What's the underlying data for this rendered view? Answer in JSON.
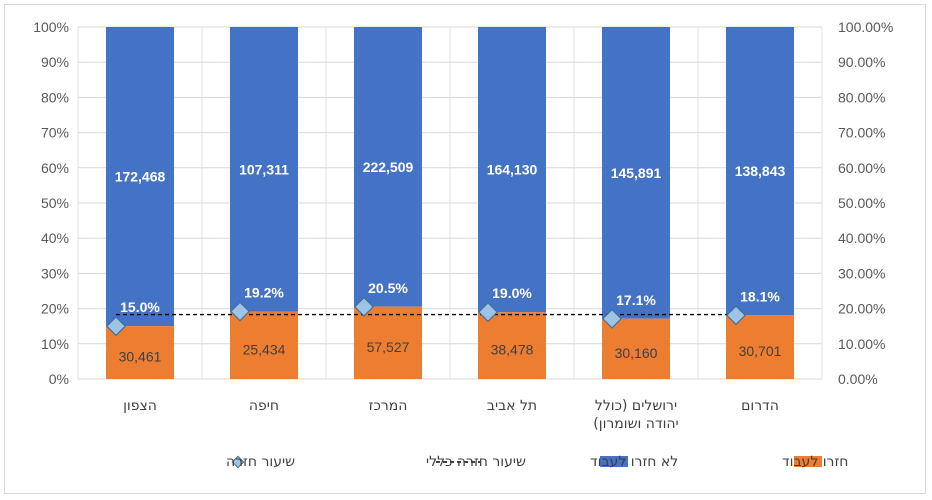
{
  "chart_data": {
    "type": "bar",
    "stacked": true,
    "percent_stacked": true,
    "categories": [
      "הצפון",
      "חיפה",
      "המרכז",
      "תל אביב",
      "ירושלים (כולל יהודה ושומרון)",
      "הדרום"
    ],
    "category_lines": [
      [
        "הצפון"
      ],
      [
        "חיפה"
      ],
      [
        "המרכז"
      ],
      [
        "תל אביב"
      ],
      [
        "ירושלים (כולל",
        "יהודה ושומרון)"
      ],
      [
        "הדרום"
      ]
    ],
    "series": [
      {
        "name": "חזרו לעבוד",
        "values": [
          30461,
          25434,
          57527,
          38478,
          30160,
          30701
        ],
        "labels": [
          "30,461",
          "25,434",
          "57,527",
          "38,478",
          "30,160",
          "30,701"
        ],
        "color": "#ED7D31"
      },
      {
        "name": "לא חזרו לעבוד",
        "values": [
          172468,
          107311,
          222509,
          164130,
          145891,
          138843
        ],
        "labels": [
          "172,468",
          "107,311",
          "222,509",
          "164,130",
          "145,891",
          "138,843"
        ],
        "color": "#4472C4"
      }
    ],
    "return_rate": {
      "name": "שיעור חזרה",
      "values": [
        15.0,
        19.2,
        20.5,
        19.0,
        17.1,
        18.1
      ],
      "labels": [
        "15.0%",
        "19.2%",
        "20.5%",
        "19.0%",
        "17.1%",
        "18.1%"
      ],
      "marker_color": "#9DC3E6"
    },
    "overall_rate": {
      "name": "שיעור חזרה כללי",
      "value": 18.3
    },
    "y_left": {
      "ticks": [
        "0%",
        "10%",
        "20%",
        "30%",
        "40%",
        "50%",
        "60%",
        "70%",
        "80%",
        "90%",
        "100%"
      ],
      "range": [
        0,
        100
      ]
    },
    "y_right": {
      "ticks": [
        "0.00%",
        "10.00%",
        "20.00%",
        "30.00%",
        "40.00%",
        "50.00%",
        "60.00%",
        "70.00%",
        "80.00%",
        "90.00%",
        "100.00%"
      ],
      "range": [
        0,
        100
      ]
    },
    "grid": true,
    "legend_position": "bottom"
  }
}
